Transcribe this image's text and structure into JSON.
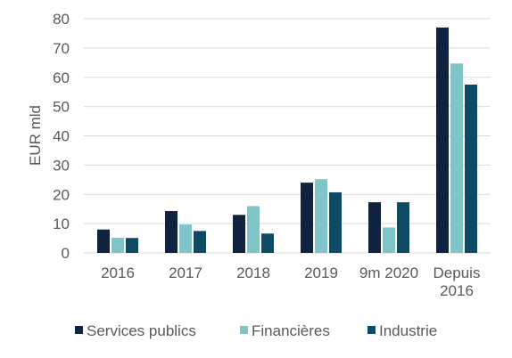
{
  "chart_data": {
    "type": "bar",
    "title": "",
    "xlabel": "",
    "ylabel": "EUR mld",
    "ylim": [
      0,
      80
    ],
    "yticks": [
      0,
      10,
      20,
      30,
      40,
      50,
      60,
      70,
      80
    ],
    "grid": true,
    "legend_position": "bottom",
    "categories": [
      [
        "2016"
      ],
      [
        "2017"
      ],
      [
        "2018"
      ],
      [
        "2019"
      ],
      [
        "9m 2020"
      ],
      [
        "Depuis",
        "2016"
      ]
    ],
    "series": [
      {
        "name": "Services publics",
        "color": "#0f2340",
        "values": [
          8,
          14.3,
          13,
          24,
          17.3,
          77
        ]
      },
      {
        "name": "Financières",
        "color": "#7fc4c9",
        "values": [
          5.2,
          9.7,
          16,
          25.2,
          8.7,
          64.7
        ]
      },
      {
        "name": "Industrie",
        "color": "#0d4a63",
        "values": [
          5.1,
          7.5,
          6.6,
          20.7,
          17.3,
          57.5
        ]
      }
    ]
  }
}
